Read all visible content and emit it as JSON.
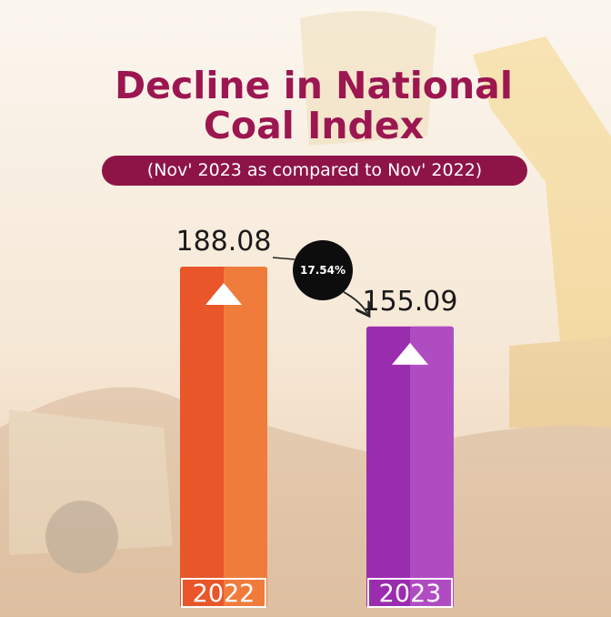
{
  "chart_data": {
    "type": "bar",
    "title": "Decline in National Coal Index",
    "subtitle": "(Nov' 2023 as compared to Nov' 2022)",
    "categories": [
      "2022",
      "2023"
    ],
    "values": [
      188.08,
      155.09
    ],
    "colors": [
      "#e8562a",
      "#9a2cae"
    ],
    "highlight_colors": [
      "#f07c3c",
      "#b04cc2"
    ],
    "annotation": "17.54%"
  }
}
